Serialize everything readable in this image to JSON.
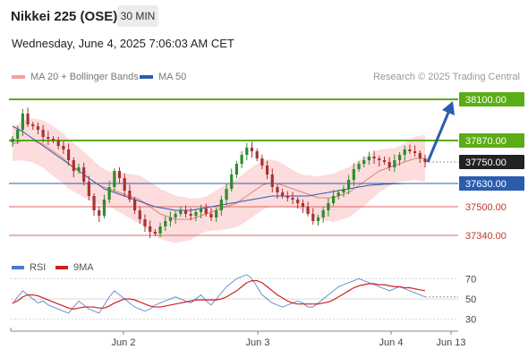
{
  "header": {
    "title": "Nikkei 225 (OSE)",
    "timeframe": "30 MIN",
    "datetime": "Wednesday, June 4, 2025 7:06:03 AM CET"
  },
  "legend": {
    "bollinger": "MA 20 + Bollinger Bands",
    "ma50": "MA 50",
    "credit": "Research © 2025 Trading Central"
  },
  "rsi_legend": {
    "rsi": "RSI",
    "ma9": "9MA"
  },
  "colors": {
    "up_candle": "#2e8b2e",
    "down_candle": "#a83232",
    "resistance_line": "#5aad14",
    "support_line": "#e06666",
    "ma50": "#2a5db0",
    "bollinger_fill": "#fbd0d0",
    "ma20": "#e08080",
    "arrow": "#2a5db0",
    "rsi": "#4a7bd0",
    "rsi_ma": "#cc2222"
  },
  "chart_data": [
    {
      "type": "candlestick",
      "title": "Nikkei 225 (OSE)",
      "timeframe": "30 MIN",
      "x_ticks": [
        "Jun 2",
        "Jun 3",
        "Jun 4",
        "Jun 13"
      ],
      "ylim": [
        37230,
        38180
      ],
      "levels": [
        {
          "value": 38100.0,
          "label": "38100.00",
          "kind": "target"
        },
        {
          "value": 37870.0,
          "label": "37870.00",
          "kind": "resistance"
        },
        {
          "value": 37750.0,
          "label": "37750.00",
          "kind": "last"
        },
        {
          "value": 37630.0,
          "label": "37630.00",
          "kind": "pivot"
        },
        {
          "value": 37500.0,
          "label": "37500.00",
          "kind": "support"
        },
        {
          "value": 37340.0,
          "label": "37340.00",
          "kind": "support"
        }
      ],
      "forecast_arrow": {
        "from": 37750,
        "to": 38100
      },
      "close": [
        37880,
        37930,
        38020,
        37960,
        37950,
        37930,
        37890,
        37880,
        37870,
        37840,
        37820,
        37760,
        37700,
        37720,
        37640,
        37560,
        37480,
        37450,
        37540,
        37610,
        37700,
        37660,
        37590,
        37540,
        37480,
        37430,
        37390,
        37360,
        37350,
        37390,
        37420,
        37440,
        37460,
        37480,
        37460,
        37450,
        37470,
        37490,
        37460,
        37440,
        37480,
        37540,
        37600,
        37680,
        37740,
        37790,
        37830,
        37810,
        37770,
        37730,
        37680,
        37610,
        37580,
        37560,
        37550,
        37540,
        37520,
        37500,
        37460,
        37420,
        37440,
        37480,
        37520,
        37560,
        37580,
        37600,
        37650,
        37710,
        37740,
        37760,
        37780,
        37770,
        37760,
        37750,
        37720,
        37760,
        37790,
        37820,
        37810,
        37800,
        37770,
        37750
      ],
      "ma20": [
        37850,
        37860,
        37870,
        37870,
        37870,
        37860,
        37850,
        37830,
        37810,
        37790,
        37770,
        37740,
        37720,
        37700,
        37680,
        37660,
        37640,
        37620,
        37610,
        37600,
        37590,
        37580,
        37570,
        37560,
        37550,
        37540,
        37520,
        37500,
        37480,
        37460,
        37450,
        37440,
        37430,
        37430,
        37430,
        37430,
        37440,
        37450,
        37460,
        37470,
        37480,
        37490,
        37500,
        37510,
        37520,
        37540,
        37560,
        37580,
        37600,
        37620,
        37630,
        37630,
        37630,
        37620,
        37610,
        37600,
        37590,
        37580,
        37570,
        37560,
        37550,
        37550,
        37550,
        37550,
        37560,
        37570,
        37580,
        37600,
        37620,
        37640,
        37660,
        37680,
        37700,
        37710,
        37720,
        37730,
        37740,
        37750,
        37760,
        37770,
        37770,
        37770
      ],
      "ma50": [
        37950,
        37935,
        37920,
        37900,
        37880,
        37860,
        37840,
        37820,
        37800,
        37780,
        37760,
        37740,
        37720,
        37700,
        37680,
        37660,
        37640,
        37620,
        37600,
        37590,
        37580,
        37570,
        37560,
        37550,
        37540,
        37530,
        37520,
        37510,
        37500,
        37495,
        37490,
        37485,
        37480,
        37480,
        37480,
        37480,
        37485,
        37490,
        37495,
        37500,
        37505,
        37510,
        37515,
        37520,
        37525,
        37530,
        37535,
        37540,
        37545,
        37550,
        37555,
        37560,
        37560,
        37560,
        37560,
        37560,
        37560,
        37560,
        37560,
        37565,
        37570,
        37575,
        37580,
        37585,
        37590,
        37595,
        37600,
        37605,
        37610,
        37615,
        37620,
        37622,
        37624,
        37626,
        37627,
        37628,
        37629,
        37630,
        37630,
        37630,
        37630,
        37630
      ]
    },
    {
      "type": "line",
      "title": "RSI",
      "y_ticks": [
        70,
        50,
        30
      ],
      "ylim": [
        20,
        80
      ],
      "series": [
        {
          "name": "RSI",
          "values": [
            45,
            52,
            58,
            54,
            50,
            46,
            48,
            44,
            42,
            40,
            38,
            36,
            42,
            48,
            44,
            40,
            38,
            36,
            44,
            52,
            58,
            54,
            50,
            46,
            42,
            40,
            38,
            40,
            44,
            46,
            48,
            50,
            52,
            50,
            48,
            46,
            50,
            54,
            48,
            44,
            50,
            56,
            62,
            66,
            70,
            72,
            74,
            70,
            62,
            54,
            50,
            46,
            44,
            42,
            44,
            46,
            48,
            46,
            42,
            42,
            46,
            50,
            54,
            58,
            62,
            64,
            66,
            68,
            70,
            68,
            66,
            64,
            62,
            60,
            58,
            60,
            62,
            60,
            58,
            56,
            54,
            52
          ]
        },
        {
          "name": "9MA",
          "values": [
            46,
            48,
            52,
            54,
            54,
            53,
            51,
            49,
            47,
            45,
            43,
            41,
            40,
            41,
            42,
            42,
            42,
            41,
            41,
            43,
            46,
            48,
            50,
            50,
            49,
            47,
            45,
            43,
            42,
            42,
            43,
            44,
            45,
            46,
            47,
            48,
            49,
            49,
            49,
            49,
            49,
            50,
            52,
            55,
            58,
            62,
            66,
            68,
            68,
            66,
            62,
            58,
            54,
            51,
            48,
            46,
            45,
            45,
            45,
            45,
            45,
            46,
            47,
            49,
            52,
            55,
            58,
            61,
            63,
            64,
            65,
            65,
            64,
            64,
            63,
            62,
            62,
            61,
            61,
            60,
            59,
            58
          ]
        }
      ]
    }
  ]
}
